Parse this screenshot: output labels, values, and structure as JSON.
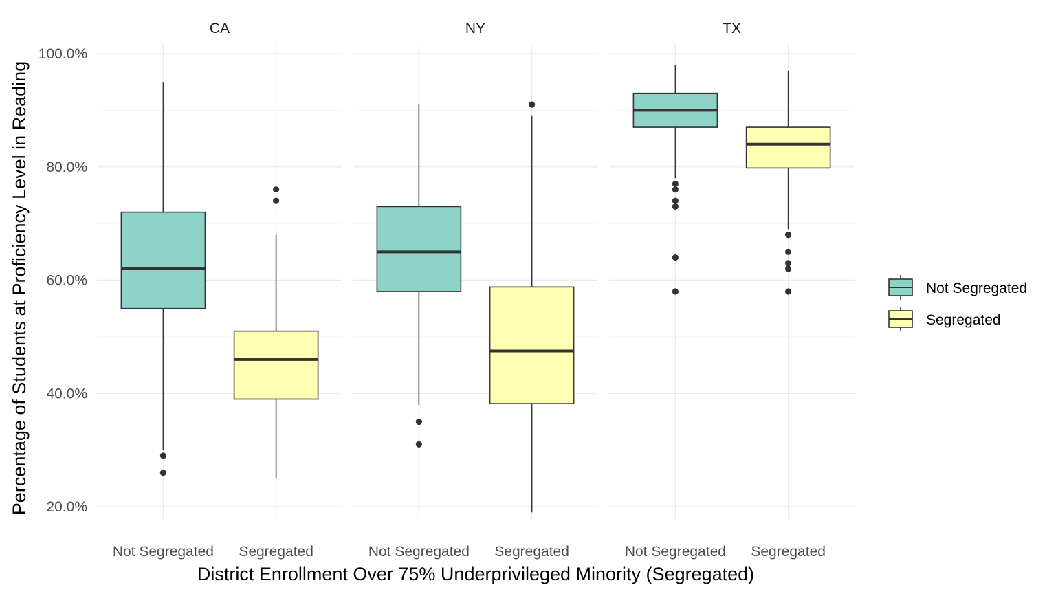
{
  "chart_data": {
    "type": "boxplot",
    "xlabel": "District Enrollment Over 75% Underprivileged Minority (Segregated)",
    "ylabel": "Percentage of Students at Proficiency Level in Reading",
    "ylim": [
      18,
      102
    ],
    "y_ticks": [
      20,
      40,
      60,
      80,
      100
    ],
    "y_tick_labels": [
      "20.0%",
      "40.0%",
      "60.0%",
      "80.0%",
      "100.0%"
    ],
    "categories": [
      "Not Segregated",
      "Segregated"
    ],
    "legend": {
      "position": "right",
      "entries": [
        {
          "label": "Not Segregated",
          "color": "#8dd3c7"
        },
        {
          "label": "Segregated",
          "color": "#ffffb3"
        }
      ]
    },
    "grid": true,
    "facets": [
      {
        "label": "CA",
        "boxes": [
          {
            "category": "Not Segregated",
            "whisker_low": 30,
            "q1": 55,
            "median": 62,
            "q3": 72,
            "whisker_high": 95,
            "outliers": [
              29,
              26
            ]
          },
          {
            "category": "Segregated",
            "whisker_low": 25,
            "q1": 39,
            "median": 46,
            "q3": 51,
            "whisker_high": 68,
            "outliers": [
              76,
              74
            ]
          }
        ]
      },
      {
        "label": "NY",
        "boxes": [
          {
            "category": "Not Segregated",
            "whisker_low": 38,
            "q1": 58,
            "median": 65,
            "q3": 73,
            "whisker_high": 91,
            "outliers": [
              35,
              31
            ]
          },
          {
            "category": "Segregated",
            "whisker_low": 19,
            "q1": 38.2,
            "median": 47.5,
            "q3": 58.8,
            "whisker_high": 89,
            "outliers": [
              91
            ]
          }
        ]
      },
      {
        "label": "TX",
        "boxes": [
          {
            "category": "Not Segregated",
            "whisker_low": 78,
            "q1": 87,
            "median": 90,
            "q3": 93,
            "whisker_high": 98,
            "outliers": [
              77,
              76,
              74,
              73,
              64,
              58
            ]
          },
          {
            "category": "Segregated",
            "whisker_low": 69,
            "q1": 79.8,
            "median": 84,
            "q3": 87,
            "whisker_high": 97,
            "outliers": [
              68,
              65,
              63,
              62,
              58
            ]
          }
        ]
      }
    ]
  }
}
